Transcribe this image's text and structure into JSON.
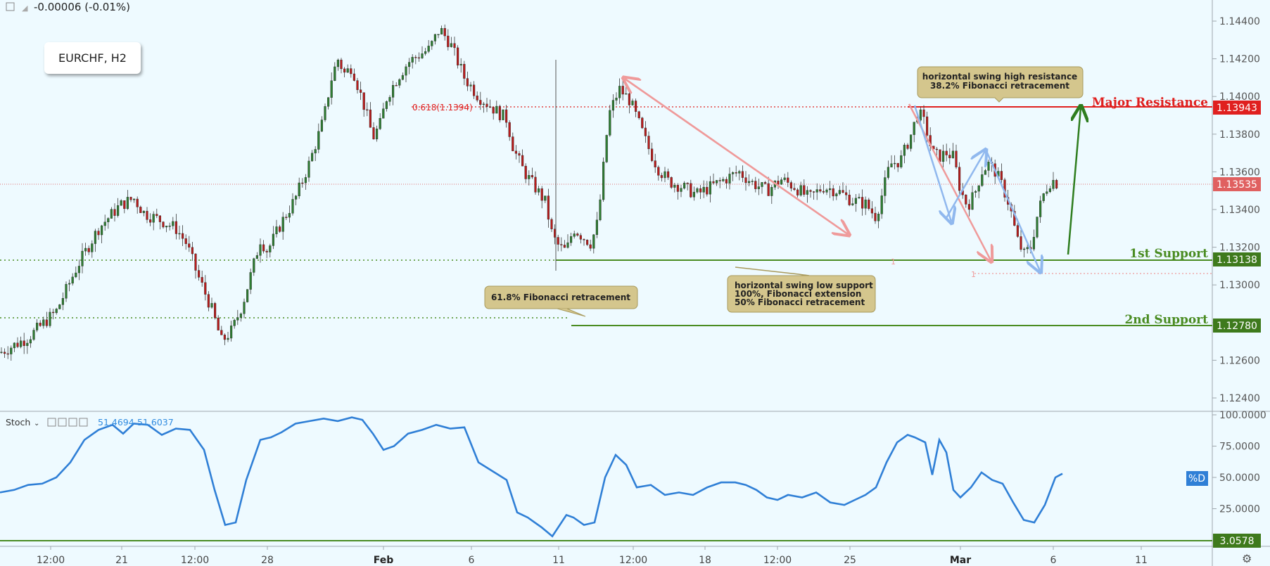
{
  "header": {
    "change": "-0.00006 (-0.01%)"
  },
  "symbol": "EURCHF, H2",
  "colors": {
    "background": "#eefaff",
    "up_candle": "#2e7d32",
    "down_candle": "#b71c1c",
    "resistance": "#e0201f",
    "support": "#4a8c22",
    "stoch_line": "#2f7fd6",
    "arrow_red": "#ef9a9a",
    "arrow_blue": "#90b8ee",
    "arrow_green": "#2e7d1e",
    "note_bg": "#d4c68d"
  },
  "price_axis": {
    "ticks": [
      "1.14400",
      "1.14200",
      "1.14000",
      "1.13800",
      "1.13600",
      "1.13400",
      "1.13200",
      "1.13000",
      "1.12800",
      "1.12600",
      "1.12400"
    ],
    "tags": {
      "major_resistance": "1.13943",
      "current": "1.13535",
      "first_support": "1.13138",
      "second_support": "1.12780"
    }
  },
  "stoch_axis": {
    "ticks": [
      "100.0000",
      "75.0000",
      "50.0000",
      "25.0000"
    ],
    "tag": "3.0578"
  },
  "time_axis": [
    "12:00",
    "21",
    "12:00",
    "28",
    "Feb",
    "6",
    "11",
    "12:00",
    "18",
    "12:00",
    "25",
    "Mar",
    "6",
    "11"
  ],
  "levels": {
    "major_resistance": "Major Resistance",
    "first_support": "1st Support",
    "second_support": "2nd Support",
    "fib_marker": "0.618(1.1394)",
    "pink_one_a": "1",
    "pink_one_b": "1"
  },
  "notes": {
    "resistance_line1": "horizontal swing high resistance",
    "resistance_line2": "38.2% Fibonacci retracement",
    "fib_retracement": "61.8% Fibonacci retracement",
    "support_line1": "horizontal swing low support",
    "support_line2": "100%, Fibonacci extension",
    "support_line3": "50% Fibonacci retracement"
  },
  "stoch": {
    "title": "Stoch",
    "k": "51.4694",
    "d": "51.6037",
    "series_tag": "%D"
  },
  "chart_data": {
    "type": "candlestick",
    "instrument": "EURCHF",
    "timeframe": "H2",
    "ylim": [
      1.1235,
      1.1446
    ],
    "close_path": [
      [
        0,
        1.1264
      ],
      [
        40,
        1.1272
      ],
      [
        80,
        1.1286
      ],
      [
        110,
        1.131
      ],
      [
        140,
        1.133
      ],
      [
        170,
        1.1342
      ],
      [
        190,
        1.1346
      ],
      [
        205,
        1.1338
      ],
      [
        230,
        1.1334
      ],
      [
        250,
        1.133
      ],
      [
        265,
        1.1322
      ],
      [
        280,
        1.1306
      ],
      [
        300,
        1.1288
      ],
      [
        315,
        1.127
      ],
      [
        330,
        1.1276
      ],
      [
        345,
        1.129
      ],
      [
        360,
        1.131
      ],
      [
        370,
        1.1324
      ],
      [
        380,
        1.1318
      ],
      [
        400,
        1.1333
      ],
      [
        420,
        1.1346
      ],
      [
        440,
        1.1365
      ],
      [
        460,
        1.1388
      ],
      [
        470,
        1.1408
      ],
      [
        480,
        1.142
      ],
      [
        490,
        1.1412
      ],
      [
        500,
        1.1416
      ],
      [
        510,
        1.1404
      ],
      [
        520,
        1.1392
      ],
      [
        530,
        1.1378
      ],
      [
        540,
        1.1385
      ],
      [
        550,
        1.14
      ],
      [
        565,
        1.141
      ],
      [
        580,
        1.1418
      ],
      [
        595,
        1.1422
      ],
      [
        610,
        1.1425
      ],
      [
        625,
        1.1436
      ],
      [
        640,
        1.1428
      ],
      [
        660,
        1.141
      ],
      [
        680,
        1.14
      ],
      [
        700,
        1.1394
      ],
      [
        720,
        1.1388
      ],
      [
        730,
        1.1372
      ],
      [
        745,
        1.136
      ],
      [
        760,
        1.1352
      ],
      [
        775,
        1.1344
      ],
      [
        785,
        1.1326
      ],
      [
        795,
        1.132
      ],
      [
        805,
        1.1318
      ],
      [
        815,
        1.133
      ],
      [
        830,
        1.1325
      ],
      [
        840,
        1.1322
      ],
      [
        850,
        1.1334
      ],
      [
        865,
        1.139
      ],
      [
        880,
        1.1404
      ],
      [
        895,
        1.1398
      ],
      [
        910,
        1.1384
      ],
      [
        920,
        1.1374
      ],
      [
        935,
        1.1362
      ],
      [
        950,
        1.1355
      ],
      [
        970,
        1.1352
      ],
      [
        990,
        1.1348
      ],
      [
        1010,
        1.1352
      ],
      [
        1030,
        1.1356
      ],
      [
        1050,
        1.136
      ],
      [
        1070,
        1.1354
      ],
      [
        1090,
        1.135
      ],
      [
        1110,
        1.1356
      ],
      [
        1130,
        1.1352
      ],
      [
        1150,
        1.1346
      ],
      [
        1170,
        1.1352
      ],
      [
        1190,
        1.135
      ],
      [
        1210,
        1.1345
      ],
      [
        1230,
        1.1343
      ],
      [
        1245,
        1.1336
      ],
      [
        1255,
        1.135
      ],
      [
        1265,
        1.1364
      ],
      [
        1280,
        1.1366
      ],
      [
        1295,
        1.138
      ],
      [
        1305,
        1.1392
      ],
      [
        1315,
        1.1385
      ],
      [
        1325,
        1.137
      ],
      [
        1335,
        1.1368
      ],
      [
        1345,
        1.137
      ],
      [
        1355,
        1.1368
      ],
      [
        1365,
        1.135
      ],
      [
        1375,
        1.1342
      ],
      [
        1385,
        1.1348
      ],
      [
        1395,
        1.136
      ],
      [
        1405,
        1.1364
      ],
      [
        1415,
        1.136
      ],
      [
        1425,
        1.1352
      ],
      [
        1435,
        1.1342
      ],
      [
        1445,
        1.1325
      ],
      [
        1455,
        1.1316
      ],
      [
        1465,
        1.132
      ],
      [
        1475,
        1.1338
      ],
      [
        1485,
        1.135
      ],
      [
        1495,
        1.1356
      ],
      [
        1505,
        1.1353
      ]
    ],
    "levels": {
      "major_resistance": 1.13943,
      "current": 1.13535,
      "first_support": 1.13138,
      "second_support": 1.1278,
      "fib_0618": 1.1394
    },
    "stochastic": {
      "ylim": [
        0,
        100
      ],
      "d_latest": 51.6037,
      "k_latest": 51.4694,
      "lower_line": 3.0578,
      "series": [
        [
          0,
          38
        ],
        [
          20,
          40
        ],
        [
          40,
          44
        ],
        [
          60,
          45
        ],
        [
          80,
          50
        ],
        [
          100,
          62
        ],
        [
          120,
          80
        ],
        [
          140,
          88
        ],
        [
          160,
          92
        ],
        [
          175,
          85
        ],
        [
          190,
          93
        ],
        [
          210,
          92
        ],
        [
          230,
          84
        ],
        [
          250,
          89
        ],
        [
          270,
          88
        ],
        [
          290,
          72
        ],
        [
          305,
          40
        ],
        [
          320,
          12
        ],
        [
          335,
          14
        ],
        [
          350,
          48
        ],
        [
          370,
          80
        ],
        [
          385,
          82
        ],
        [
          400,
          86
        ],
        [
          420,
          93
        ],
        [
          440,
          95
        ],
        [
          460,
          97
        ],
        [
          480,
          95
        ],
        [
          500,
          98
        ],
        [
          515,
          96
        ],
        [
          530,
          85
        ],
        [
          545,
          72
        ],
        [
          560,
          75
        ],
        [
          580,
          85
        ],
        [
          600,
          88
        ],
        [
          620,
          92
        ],
        [
          640,
          89
        ],
        [
          660,
          90
        ],
        [
          680,
          62
        ],
        [
          700,
          55
        ],
        [
          720,
          48
        ],
        [
          735,
          22
        ],
        [
          750,
          18
        ],
        [
          770,
          10
        ],
        [
          785,
          3
        ],
        [
          805,
          20
        ],
        [
          815,
          18
        ],
        [
          830,
          12
        ],
        [
          845,
          14
        ],
        [
          860,
          50
        ],
        [
          875,
          68
        ],
        [
          890,
          60
        ],
        [
          905,
          42
        ],
        [
          925,
          44
        ],
        [
          945,
          36
        ],
        [
          965,
          38
        ],
        [
          985,
          36
        ],
        [
          1005,
          42
        ],
        [
          1025,
          46
        ],
        [
          1045,
          46
        ],
        [
          1060,
          44
        ],
        [
          1075,
          40
        ],
        [
          1090,
          34
        ],
        [
          1105,
          32
        ],
        [
          1120,
          36
        ],
        [
          1140,
          34
        ],
        [
          1160,
          38
        ],
        [
          1180,
          30
        ],
        [
          1200,
          28
        ],
        [
          1215,
          32
        ],
        [
          1230,
          36
        ],
        [
          1245,
          42
        ],
        [
          1260,
          62
        ],
        [
          1275,
          78
        ],
        [
          1290,
          84
        ],
        [
          1300,
          82
        ],
        [
          1315,
          78
        ],
        [
          1325,
          52
        ],
        [
          1335,
          80
        ],
        [
          1345,
          70
        ],
        [
          1355,
          40
        ],
        [
          1365,
          34
        ],
        [
          1380,
          42
        ],
        [
          1395,
          54
        ],
        [
          1410,
          48
        ],
        [
          1425,
          45
        ],
        [
          1440,
          30
        ],
        [
          1455,
          16
        ],
        [
          1470,
          14
        ],
        [
          1485,
          28
        ],
        [
          1500,
          50
        ],
        [
          1510,
          53
        ]
      ]
    }
  }
}
